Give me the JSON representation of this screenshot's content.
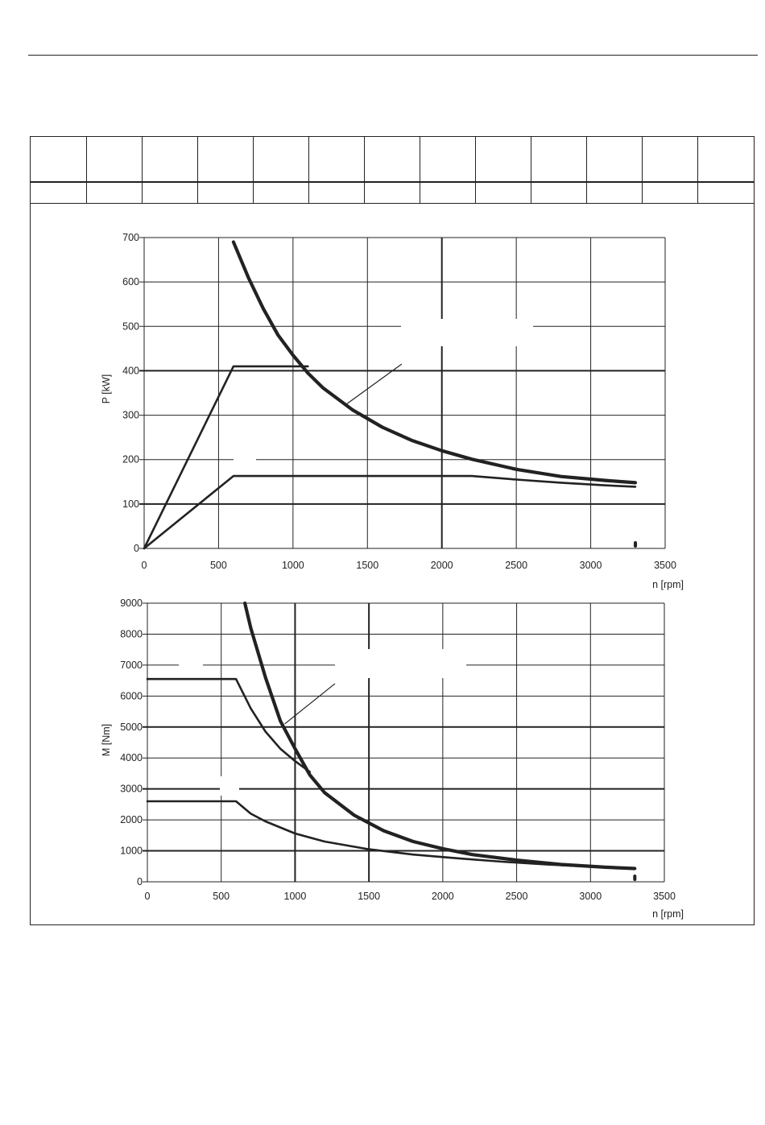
{
  "header_table": {
    "row1": [
      "",
      "",
      "",
      "",
      "",
      "",
      "",
      "",
      "",
      "",
      "",
      "",
      ""
    ],
    "row2": [
      "",
      "",
      "",
      "",
      "",
      "",
      "",
      "",
      "",
      "",
      "",
      "",
      ""
    ]
  },
  "chart_data": [
    {
      "type": "line",
      "xlabel": "n [rpm]",
      "ylabel": "P [kW]",
      "xlim": [
        0,
        3500
      ],
      "ylim": [
        0,
        700
      ],
      "xticks": [
        0,
        500,
        1000,
        1500,
        2000,
        2500,
        3000,
        3500
      ],
      "yticks": [
        0,
        100,
        200,
        300,
        400,
        500,
        600,
        700
      ],
      "grid": true,
      "series": [
        {
          "style": "thick",
          "points": [
            [
              600,
              690
            ],
            [
              700,
              610
            ],
            [
              800,
              540
            ],
            [
              900,
              480
            ],
            [
              1000,
              435
            ],
            [
              1100,
              395
            ],
            [
              1200,
              362
            ],
            [
              1400,
              312
            ],
            [
              1600,
              273
            ],
            [
              1800,
              243
            ],
            [
              2000,
              220
            ],
            [
              2200,
              201
            ],
            [
              2500,
              178
            ],
            [
              2800,
              162
            ],
            [
              3100,
              153
            ],
            [
              3300,
              148
            ]
          ]
        },
        {
          "style": "normal",
          "points": [
            [
              0,
              0
            ],
            [
              600,
              410
            ],
            [
              1100,
              410
            ]
          ]
        },
        {
          "style": "normal",
          "points": [
            [
              0,
              0
            ],
            [
              600,
              163
            ],
            [
              2200,
              163
            ],
            [
              2500,
              155
            ],
            [
              2800,
              148
            ],
            [
              3100,
              142
            ],
            [
              3300,
              139
            ]
          ]
        }
      ],
      "annotations": [
        {
          "type": "leader",
          "from": [
            1360,
            325
          ],
          "to": [
            1730,
            415
          ]
        }
      ]
    },
    {
      "type": "line",
      "xlabel": "n [rpm]",
      "ylabel": "M [Nm]",
      "xlim": [
        0,
        3500
      ],
      "ylim": [
        0,
        9000
      ],
      "xticks": [
        0,
        500,
        1000,
        1500,
        2000,
        2500,
        3000,
        3500
      ],
      "yticks": [
        0,
        1000,
        2000,
        3000,
        4000,
        5000,
        6000,
        7000,
        8000,
        9000
      ],
      "grid": true,
      "series": [
        {
          "style": "thick",
          "points": [
            [
              660,
              9000
            ],
            [
              700,
              8200
            ],
            [
              800,
              6600
            ],
            [
              900,
              5200
            ],
            [
              1000,
              4300
            ],
            [
              1100,
              3450
            ],
            [
              1200,
              2880
            ],
            [
              1400,
              2150
            ],
            [
              1600,
              1650
            ],
            [
              1800,
              1300
            ],
            [
              2000,
              1070
            ],
            [
              2200,
              880
            ],
            [
              2500,
              700
            ],
            [
              2800,
              560
            ],
            [
              3100,
              470
            ],
            [
              3300,
              430
            ]
          ]
        },
        {
          "style": "normal",
          "points": [
            [
              0,
              6550
            ],
            [
              600,
              6550
            ],
            [
              700,
              5600
            ],
            [
              800,
              4850
            ],
            [
              900,
              4300
            ],
            [
              1000,
              3900
            ],
            [
              1100,
              3550
            ]
          ]
        },
        {
          "style": "normal",
          "points": [
            [
              0,
              2600
            ],
            [
              600,
              2600
            ],
            [
              700,
              2200
            ],
            [
              800,
              1950
            ],
            [
              1000,
              1560
            ],
            [
              1200,
              1300
            ],
            [
              1500,
              1050
            ],
            [
              1800,
              880
            ],
            [
              2100,
              760
            ],
            [
              2400,
              650
            ],
            [
              2700,
              560
            ],
            [
              3000,
              490
            ],
            [
              3300,
              440
            ]
          ]
        }
      ],
      "annotations": [
        {
          "type": "leader",
          "from": [
            930,
            5100
          ],
          "to": [
            1270,
            6400
          ]
        }
      ]
    }
  ]
}
